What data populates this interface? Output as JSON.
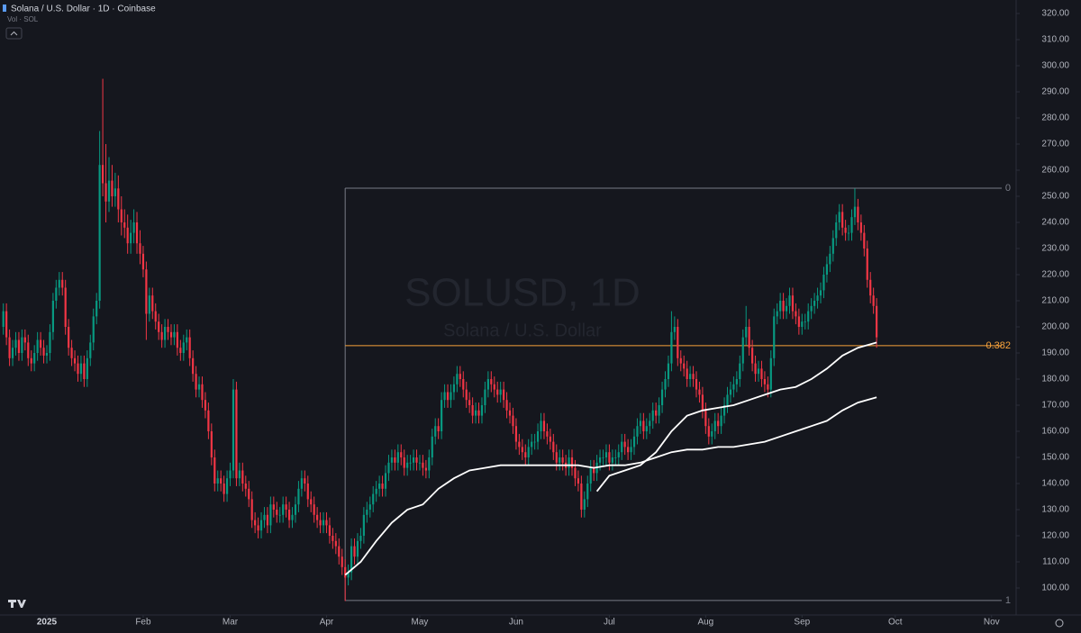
{
  "chart_data": {
    "type": "candlestick",
    "title": "Solana / U.S. Dollar · 1D · Coinbase",
    "subtitle": "Vol · SOL",
    "watermark": {
      "symbol": "SOLUSD, 1D",
      "name": "Solana / U.S. Dollar"
    },
    "up_color": "#089981",
    "down_color": "#f23645",
    "open": [
      200,
      206,
      196,
      188,
      192,
      195,
      190,
      196,
      194,
      188,
      186,
      190,
      195,
      192,
      189,
      190,
      198,
      210,
      215,
      218,
      215,
      200,
      192,
      188,
      186,
      182,
      186,
      180,
      188,
      194,
      204,
      210,
      262,
      255,
      248,
      256,
      250,
      253,
      245,
      240,
      238,
      232,
      236,
      240,
      232,
      228,
      222,
      205,
      212,
      206,
      202,
      198,
      195,
      200,
      198,
      196,
      198,
      192,
      190,
      194,
      196,
      188,
      182,
      176,
      178,
      172,
      168,
      160,
      150,
      140,
      142,
      140,
      136,
      142,
      145,
      176,
      142,
      145,
      140,
      138,
      134,
      126,
      124,
      122,
      126,
      128,
      124,
      132,
      130,
      128,
      128,
      132,
      130,
      126,
      128,
      132,
      138,
      142,
      140,
      134,
      132,
      128,
      126,
      124,
      126,
      124,
      120,
      118,
      116,
      112,
      108,
      104,
      106,
      116,
      112,
      118,
      120,
      128,
      130,
      132,
      136,
      138,
      140,
      138,
      144,
      148,
      150,
      148,
      152,
      150,
      146,
      148,
      148,
      150,
      148,
      148,
      146,
      145,
      150,
      158,
      162,
      160,
      172,
      175,
      172,
      175,
      178,
      182,
      180,
      176,
      172,
      170,
      166,
      168,
      166,
      170,
      176,
      180,
      178,
      176,
      174,
      176,
      172,
      168,
      166,
      162,
      156,
      154,
      152,
      150,
      154,
      156,
      156,
      160,
      164,
      160,
      158,
      156,
      152,
      148,
      150,
      148,
      146,
      150,
      146,
      142,
      140,
      130,
      134,
      140,
      146,
      144,
      148,
      150,
      150,
      152,
      148,
      150,
      150,
      152,
      156,
      154,
      152,
      154,
      158,
      162,
      164,
      160,
      162,
      164,
      168,
      166,
      170,
      176,
      180,
      186,
      198,
      200,
      188,
      186,
      184,
      180,
      182,
      180,
      176,
      174,
      168,
      162,
      158,
      160,
      164,
      162,
      166,
      170,
      174,
      176,
      178,
      180,
      186,
      196,
      200,
      192,
      186,
      182,
      184,
      180,
      178,
      176,
      188,
      204,
      206,
      210,
      206,
      208,
      212,
      206,
      204,
      200,
      202,
      202,
      206,
      208,
      210,
      212,
      214,
      220,
      224,
      228,
      234,
      240,
      244,
      238,
      236,
      236,
      242,
      246,
      240,
      236,
      230,
      218,
      212,
      208
    ],
    "high": [
      209,
      209,
      199,
      195,
      198,
      198,
      199,
      199,
      197,
      191,
      193,
      198,
      198,
      195,
      193,
      201,
      213,
      218,
      221,
      221,
      218,
      203,
      195,
      191,
      189,
      189,
      189,
      191,
      197,
      207,
      213,
      275,
      295,
      270,
      265,
      262,
      259,
      258,
      250,
      245,
      243,
      241,
      245,
      244,
      237,
      231,
      225,
      215,
      215,
      209,
      205,
      201,
      203,
      203,
      201,
      201,
      201,
      195,
      197,
      199,
      199,
      191,
      185,
      181,
      181,
      175,
      171,
      163,
      153,
      145,
      145,
      143,
      145,
      148,
      180,
      179,
      148,
      148,
      143,
      141,
      137,
      129,
      127,
      129,
      131,
      131,
      135,
      135,
      133,
      131,
      135,
      135,
      133,
      131,
      135,
      141,
      145,
      145,
      143,
      137,
      135,
      131,
      129,
      129,
      129,
      127,
      123,
      121,
      119,
      115,
      111,
      109,
      119,
      119,
      121,
      123,
      131,
      133,
      135,
      139,
      141,
      143,
      143,
      147,
      151,
      153,
      153,
      155,
      155,
      153,
      151,
      151,
      153,
      153,
      151,
      151,
      149,
      153,
      161,
      165,
      165,
      175,
      178,
      178,
      178,
      181,
      185,
      185,
      183,
      179,
      175,
      173,
      171,
      171,
      173,
      179,
      183,
      183,
      181,
      179,
      179,
      179,
      175,
      171,
      169,
      165,
      159,
      157,
      155,
      157,
      159,
      159,
      163,
      167,
      167,
      163,
      161,
      159,
      155,
      153,
      153,
      151,
      153,
      153,
      149,
      145,
      143,
      137,
      143,
      149,
      149,
      151,
      153,
      153,
      155,
      155,
      153,
      153,
      155,
      159,
      159,
      157,
      157,
      161,
      165,
      167,
      167,
      165,
      167,
      171,
      171,
      173,
      179,
      183,
      189,
      206,
      204,
      203,
      191,
      189,
      187,
      185,
      185,
      183,
      179,
      177,
      171,
      165,
      163,
      167,
      167,
      169,
      173,
      177,
      179,
      181,
      183,
      189,
      199,
      208,
      203,
      195,
      189,
      187,
      187,
      183,
      181,
      191,
      207,
      209,
      213,
      213,
      211,
      215,
      215,
      209,
      207,
      205,
      205,
      209,
      211,
      213,
      215,
      217,
      223,
      227,
      231,
      237,
      243,
      247,
      247,
      241,
      239,
      245,
      253,
      249,
      243,
      239,
      233,
      221,
      215,
      211
    ],
    "low": [
      197,
      193,
      185,
      185,
      189,
      187,
      187,
      191,
      185,
      183,
      183,
      187,
      189,
      186,
      186,
      187,
      195,
      207,
      212,
      212,
      197,
      189,
      185,
      183,
      179,
      179,
      177,
      177,
      185,
      191,
      201,
      207,
      250,
      240,
      244,
      246,
      246,
      240,
      235,
      234,
      228,
      228,
      232,
      228,
      224,
      219,
      195,
      202,
      203,
      199,
      195,
      192,
      192,
      195,
      193,
      193,
      189,
      187,
      187,
      191,
      185,
      179,
      173,
      173,
      169,
      165,
      157,
      147,
      137,
      137,
      137,
      133,
      133,
      139,
      142,
      139,
      139,
      137,
      135,
      131,
      123,
      121,
      119,
      119,
      123,
      121,
      121,
      127,
      125,
      125,
      125,
      127,
      123,
      123,
      125,
      129,
      135,
      137,
      131,
      129,
      125,
      123,
      121,
      121,
      121,
      117,
      115,
      113,
      109,
      105,
      95,
      101,
      103,
      109,
      109,
      115,
      117,
      125,
      127,
      129,
      133,
      135,
      135,
      135,
      141,
      145,
      145,
      145,
      147,
      143,
      143,
      145,
      145,
      145,
      145,
      143,
      142,
      142,
      147,
      155,
      157,
      157,
      169,
      169,
      169,
      172,
      175,
      177,
      173,
      169,
      167,
      163,
      163,
      163,
      163,
      167,
      173,
      175,
      173,
      171,
      171,
      169,
      165,
      163,
      159,
      153,
      151,
      149,
      147,
      147,
      151,
      153,
      153,
      157,
      157,
      155,
      153,
      149,
      145,
      145,
      145,
      143,
      143,
      143,
      139,
      137,
      127,
      127,
      131,
      137,
      141,
      141,
      145,
      147,
      147,
      145,
      145,
      147,
      147,
      149,
      151,
      149,
      149,
      151,
      155,
      159,
      157,
      157,
      159,
      161,
      163,
      163,
      167,
      173,
      177,
      183,
      195,
      185,
      183,
      181,
      177,
      177,
      177,
      173,
      171,
      165,
      159,
      155,
      155,
      157,
      159,
      159,
      163,
      167,
      171,
      173,
      175,
      177,
      183,
      193,
      189,
      183,
      179,
      179,
      177,
      175,
      173,
      173,
      185,
      201,
      203,
      203,
      203,
      205,
      203,
      201,
      197,
      197,
      199,
      199,
      203,
      205,
      207,
      209,
      211,
      217,
      221,
      225,
      231,
      237,
      235,
      233,
      233,
      233,
      239,
      237,
      233,
      227,
      215,
      209,
      205,
      192
    ],
    "close": [
      206,
      196,
      188,
      192,
      195,
      190,
      196,
      194,
      188,
      186,
      190,
      195,
      192,
      189,
      190,
      198,
      210,
      215,
      218,
      215,
      200,
      192,
      188,
      186,
      182,
      186,
      180,
      188,
      194,
      204,
      210,
      262,
      255,
      248,
      256,
      250,
      253,
      245,
      240,
      238,
      232,
      236,
      240,
      232,
      228,
      222,
      205,
      212,
      206,
      202,
      198,
      195,
      200,
      198,
      196,
      198,
      192,
      190,
      194,
      196,
      188,
      182,
      176,
      178,
      172,
      168,
      160,
      150,
      140,
      142,
      140,
      136,
      142,
      145,
      176,
      142,
      145,
      140,
      138,
      134,
      126,
      124,
      122,
      126,
      128,
      124,
      132,
      130,
      128,
      128,
      132,
      130,
      126,
      128,
      132,
      138,
      142,
      140,
      134,
      132,
      128,
      126,
      124,
      126,
      124,
      120,
      118,
      116,
      112,
      108,
      104,
      106,
      116,
      112,
      118,
      120,
      128,
      130,
      132,
      136,
      138,
      140,
      138,
      144,
      148,
      150,
      148,
      152,
      150,
      146,
      148,
      148,
      150,
      148,
      148,
      146,
      145,
      150,
      158,
      162,
      160,
      172,
      175,
      172,
      175,
      178,
      182,
      180,
      176,
      172,
      170,
      166,
      168,
      166,
      170,
      176,
      180,
      178,
      176,
      174,
      176,
      172,
      168,
      166,
      162,
      156,
      154,
      152,
      150,
      154,
      156,
      156,
      160,
      164,
      160,
      158,
      156,
      152,
      148,
      150,
      148,
      146,
      150,
      146,
      142,
      140,
      130,
      134,
      140,
      146,
      144,
      148,
      150,
      150,
      152,
      148,
      150,
      150,
      152,
      156,
      154,
      152,
      154,
      158,
      162,
      164,
      160,
      162,
      164,
      168,
      166,
      170,
      176,
      180,
      186,
      198,
      200,
      188,
      186,
      184,
      180,
      182,
      180,
      176,
      174,
      168,
      162,
      158,
      160,
      164,
      162,
      166,
      170,
      174,
      176,
      178,
      180,
      186,
      196,
      200,
      192,
      186,
      182,
      184,
      180,
      178,
      176,
      188,
      204,
      206,
      210,
      206,
      208,
      212,
      206,
      204,
      200,
      202,
      202,
      206,
      208,
      210,
      212,
      214,
      220,
      224,
      228,
      234,
      240,
      244,
      238,
      236,
      236,
      242,
      246,
      240,
      236,
      230,
      218,
      212,
      208,
      196
    ],
    "lines": [
      {
        "color": "#ffffff",
        "x": [
          110,
          115,
          120,
          125,
          130,
          135,
          140,
          145,
          150,
          155,
          160,
          165,
          170,
          175,
          180,
          185,
          190,
          195,
          200,
          205,
          210,
          215,
          220,
          225,
          230,
          235,
          240,
          245,
          250,
          255,
          260,
          265,
          270,
          275,
          281
        ],
        "values": [
          105,
          110,
          118,
          125,
          130,
          132,
          138,
          142,
          145,
          146,
          147,
          147,
          147,
          147,
          147,
          147,
          146,
          147,
          147,
          148,
          150,
          152,
          153,
          153,
          154,
          154,
          155,
          156,
          158,
          160,
          162,
          164,
          168,
          171,
          173
        ]
      },
      {
        "color": "#ffffff",
        "x": [
          191,
          195,
          200,
          205,
          210,
          215,
          220,
          225,
          230,
          235,
          240,
          245,
          250,
          255,
          260,
          265,
          270,
          275,
          281
        ],
        "values": [
          137,
          143,
          145,
          147,
          152,
          160,
          166,
          168,
          169,
          170,
          172,
          174,
          176,
          177,
          180,
          184,
          189,
          192,
          194
        ]
      }
    ],
    "fib": {
      "start": 110,
      "levels": [
        {
          "ratio": 0,
          "price": 253.1,
          "color": "#787b86"
        },
        {
          "ratio": 0.382,
          "price": 192.8,
          "color": "#f7a23b"
        },
        {
          "ratio": 1,
          "price": 95.2,
          "color": "#787b86"
        }
      ]
    },
    "xlim": [
      -1.07,
      325.9
    ],
    "xticks": [
      {
        "value": 14,
        "label": "2025"
      },
      {
        "value": 45,
        "label": "Feb"
      },
      {
        "value": 73,
        "label": "Mar"
      },
      {
        "value": 104,
        "label": "Apr"
      },
      {
        "value": 134,
        "label": "May"
      },
      {
        "value": 165,
        "label": "Jun"
      },
      {
        "value": 195,
        "label": "Jul"
      },
      {
        "value": 226,
        "label": "Aug"
      },
      {
        "value": 257,
        "label": "Sep"
      },
      {
        "value": 287,
        "label": "Oct"
      },
      {
        "value": 318,
        "label": "Nov"
      }
    ],
    "ylim": [
      89.66,
      325.17
    ],
    "yticks": [
      {
        "value": 100,
        "label": "100.00"
      },
      {
        "value": 110,
        "label": "110.00"
      },
      {
        "value": 120,
        "label": "120.00"
      },
      {
        "value": 130,
        "label": "130.00"
      },
      {
        "value": 140,
        "label": "140.00"
      },
      {
        "value": 150,
        "label": "150.00"
      },
      {
        "value": 160,
        "label": "160.00"
      },
      {
        "value": 170,
        "label": "170.00"
      },
      {
        "value": 180,
        "label": "180.00"
      },
      {
        "value": 190,
        "label": "190.00"
      },
      {
        "value": 200,
        "label": "200.00"
      },
      {
        "value": 210,
        "label": "210.00"
      },
      {
        "value": 220,
        "label": "220.00"
      },
      {
        "value": 230,
        "label": "230.00"
      },
      {
        "value": 240,
        "label": "240.00"
      },
      {
        "value": 250,
        "label": "250.00"
      },
      {
        "value": 260,
        "label": "260.00"
      },
      {
        "value": 270,
        "label": "270.00"
      },
      {
        "value": 280,
        "label": "280.00"
      },
      {
        "value": 290,
        "label": "290.00"
      },
      {
        "value": 300,
        "label": "300.00"
      },
      {
        "value": 310,
        "label": "310.00"
      },
      {
        "value": 320,
        "label": "320.00"
      }
    ]
  }
}
